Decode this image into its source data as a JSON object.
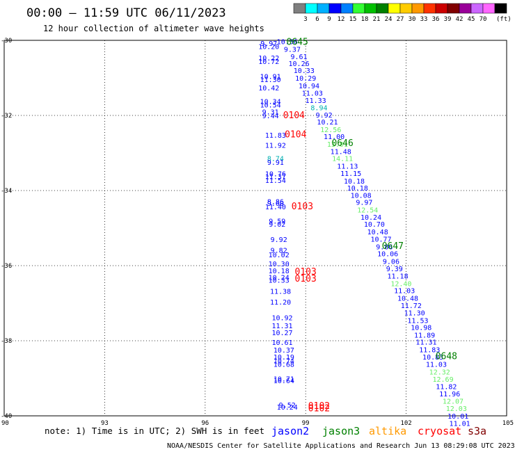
{
  "header": {
    "title": "00:00 – 11:59 UTC 06/11/2023",
    "subtitle": "12 hour collection of altimeter wave heights"
  },
  "colorbar": {
    "colors": [
      "#7f7f7f",
      "#00ffff",
      "#00b0ff",
      "#0000ff",
      "#0080ff",
      "#33ff33",
      "#00c000",
      "#008000",
      "#ffff00",
      "#ffcc00",
      "#ff9900",
      "#ff3300",
      "#cc0000",
      "#800000",
      "#990099",
      "#cc66ff",
      "#ff66ff",
      "#000000"
    ],
    "labels": [
      "3",
      "6",
      "9",
      "12",
      "15",
      "18",
      "21",
      "24",
      "27",
      "30",
      "33",
      "36",
      "39",
      "42",
      "45",
      "70"
    ],
    "unit": "(ft)"
  },
  "note": "note: 1) Time is in UTC; 2) SWH is in feet",
  "legend": [
    {
      "name": "jason2",
      "color": "#0000ff"
    },
    {
      "name": "jason3",
      "color": "#008000"
    },
    {
      "name": "altika",
      "color": "#ff9900"
    },
    {
      "name": "cryosat",
      "color": "#ff0000"
    },
    {
      "name": "s3a",
      "color": "#800000"
    }
  ],
  "footer": "NOAA/NESDIS Center for Satellite Applications and Research   Jun 13 08:29:08 UTC 2023",
  "chart_data": {
    "type": "scatter",
    "x_ticks": [
      "90",
      "93",
      "96",
      "99",
      "102",
      "105"
    ],
    "y_ticks": [
      "-30",
      "-32",
      "-34",
      "-36",
      "-38",
      "-40"
    ],
    "xlim": [
      90,
      105
    ],
    "ylim": [
      -40,
      -30
    ],
    "grid": true,
    "value_colors": {
      "blue": "#0000ff",
      "cyan": "#00b0b0",
      "lgreen": "#66ee66",
      "green": "#00a000"
    },
    "values": [
      {
        "x": 97.9,
        "y": -30.07,
        "v": "9.97",
        "c": "blue"
      },
      {
        "x": 97.9,
        "y": -30.16,
        "v": "10.20",
        "c": "blue"
      },
      {
        "x": 97.9,
        "y": -30.46,
        "v": "10.22",
        "c": "blue"
      },
      {
        "x": 97.9,
        "y": -30.56,
        "v": "10.72",
        "c": "blue"
      },
      {
        "x": 97.95,
        "y": -30.95,
        "v": "10.91",
        "c": "blue"
      },
      {
        "x": 97.95,
        "y": -31.04,
        "v": "11.30",
        "c": "blue"
      },
      {
        "x": 97.9,
        "y": -31.26,
        "v": "10.42",
        "c": "blue"
      },
      {
        "x": 97.95,
        "y": -31.62,
        "v": "10.34",
        "c": "blue"
      },
      {
        "x": 97.95,
        "y": -31.71,
        "v": "10.54",
        "c": "blue"
      },
      {
        "x": 97.95,
        "y": -31.9,
        "v": "9.31",
        "c": "blue"
      },
      {
        "x": 97.95,
        "y": -32.0,
        "v": "9.44",
        "c": "blue"
      },
      {
        "x": 98.1,
        "y": -32.52,
        "v": "11.83",
        "c": "blue"
      },
      {
        "x": 98.1,
        "y": -32.79,
        "v": "11.92",
        "c": "blue"
      },
      {
        "x": 98.1,
        "y": -33.14,
        "v": "8.74",
        "c": "cyan"
      },
      {
        "x": 98.1,
        "y": -33.24,
        "v": "9.91",
        "c": "blue"
      },
      {
        "x": 98.1,
        "y": -33.55,
        "v": "10.76",
        "c": "blue"
      },
      {
        "x": 98.1,
        "y": -33.62,
        "v": "11.37",
        "c": "blue"
      },
      {
        "x": 98.1,
        "y": -33.72,
        "v": "11.54",
        "c": "blue"
      },
      {
        "x": 98.1,
        "y": -34.29,
        "v": "8.86",
        "c": "blue"
      },
      {
        "x": 98.1,
        "y": -34.33,
        "v": "9.60",
        "c": "blue"
      },
      {
        "x": 98.1,
        "y": -34.43,
        "v": "11.40",
        "c": "blue"
      },
      {
        "x": 98.15,
        "y": -34.81,
        "v": "9.59",
        "c": "blue"
      },
      {
        "x": 98.15,
        "y": -34.89,
        "v": "9.02",
        "c": "blue"
      },
      {
        "x": 98.2,
        "y": -35.3,
        "v": "9.92",
        "c": "blue"
      },
      {
        "x": 98.2,
        "y": -35.58,
        "v": "9.82",
        "c": "blue"
      },
      {
        "x": 98.2,
        "y": -35.7,
        "v": "10.02",
        "c": "blue"
      },
      {
        "x": 98.2,
        "y": -35.94,
        "v": "10.30",
        "c": "blue"
      },
      {
        "x": 98.2,
        "y": -36.13,
        "v": "10.18",
        "c": "blue"
      },
      {
        "x": 98.2,
        "y": -36.31,
        "v": "10.24",
        "c": "blue"
      },
      {
        "x": 98.2,
        "y": -36.38,
        "v": "10.33",
        "c": "blue"
      },
      {
        "x": 98.25,
        "y": -36.68,
        "v": "11.38",
        "c": "blue"
      },
      {
        "x": 98.25,
        "y": -36.96,
        "v": "11.20",
        "c": "blue"
      },
      {
        "x": 98.3,
        "y": -37.38,
        "v": "10.92",
        "c": "blue"
      },
      {
        "x": 98.3,
        "y": -37.59,
        "v": "11.31",
        "c": "blue"
      },
      {
        "x": 98.3,
        "y": -37.78,
        "v": "10.27",
        "c": "blue"
      },
      {
        "x": 98.3,
        "y": -38.04,
        "v": "10.61",
        "c": "blue"
      },
      {
        "x": 98.35,
        "y": -38.24,
        "v": "10.37",
        "c": "blue"
      },
      {
        "x": 98.35,
        "y": -38.43,
        "v": "10.19",
        "c": "blue"
      },
      {
        "x": 98.35,
        "y": -38.53,
        "v": "10.74",
        "c": "blue"
      },
      {
        "x": 98.35,
        "y": -38.62,
        "v": "10.68",
        "c": "blue"
      },
      {
        "x": 98.35,
        "y": -39.01,
        "v": "10.71",
        "c": "blue"
      },
      {
        "x": 98.35,
        "y": -39.06,
        "v": "10.64",
        "c": "blue"
      },
      {
        "x": 98.45,
        "y": -39.7,
        "v": "9.52",
        "c": "blue"
      },
      {
        "x": 98.45,
        "y": -39.76,
        "v": "10.24",
        "c": "blue"
      },
      {
        "x": 98.45,
        "y": -30.03,
        "v": "10.56",
        "c": "blue"
      },
      {
        "x": 98.6,
        "y": -30.23,
        "v": "9.37",
        "c": "blue"
      },
      {
        "x": 98.8,
        "y": -30.43,
        "v": "9.61",
        "c": "blue"
      },
      {
        "x": 98.8,
        "y": -30.61,
        "v": "10.26",
        "c": "blue"
      },
      {
        "x": 98.95,
        "y": -30.8,
        "v": "10.33",
        "c": "blue"
      },
      {
        "x": 99.0,
        "y": -31.0,
        "v": "10.29",
        "c": "blue"
      },
      {
        "x": 99.1,
        "y": -31.2,
        "v": "10.94",
        "c": "blue"
      },
      {
        "x": 99.2,
        "y": -31.4,
        "v": "11.03",
        "c": "blue"
      },
      {
        "x": 99.3,
        "y": -31.59,
        "v": "11.33",
        "c": "blue"
      },
      {
        "x": 99.4,
        "y": -31.79,
        "v": "8.94",
        "c": "cyan"
      },
      {
        "x": 99.55,
        "y": -31.98,
        "v": "9.92",
        "c": "blue"
      },
      {
        "x": 99.65,
        "y": -32.17,
        "v": "10.21",
        "c": "blue"
      },
      {
        "x": 99.75,
        "y": -32.37,
        "v": "12.56",
        "c": "lgreen"
      },
      {
        "x": 99.85,
        "y": -32.56,
        "v": "11.00",
        "c": "blue"
      },
      {
        "x": 99.95,
        "y": -32.76,
        "v": "13.01",
        "c": "lgreen"
      },
      {
        "x": 100.05,
        "y": -32.95,
        "v": "11.48",
        "c": "blue"
      },
      {
        "x": 100.1,
        "y": -33.14,
        "v": "14.11",
        "c": "lgreen"
      },
      {
        "x": 100.25,
        "y": -33.34,
        "v": "11.13",
        "c": "blue"
      },
      {
        "x": 100.35,
        "y": -33.54,
        "v": "11.15",
        "c": "blue"
      },
      {
        "x": 100.45,
        "y": -33.74,
        "v": "10.18",
        "c": "blue"
      },
      {
        "x": 100.55,
        "y": -33.93,
        "v": "10.18",
        "c": "blue"
      },
      {
        "x": 100.65,
        "y": -34.12,
        "v": "10.08",
        "c": "blue"
      },
      {
        "x": 100.75,
        "y": -34.31,
        "v": "9.97",
        "c": "blue"
      },
      {
        "x": 100.85,
        "y": -34.51,
        "v": "12.54",
        "c": "lgreen"
      },
      {
        "x": 100.95,
        "y": -34.7,
        "v": "10.24",
        "c": "blue"
      },
      {
        "x": 101.05,
        "y": -34.89,
        "v": "10.70",
        "c": "blue"
      },
      {
        "x": 101.15,
        "y": -35.09,
        "v": "10.48",
        "c": "blue"
      },
      {
        "x": 101.25,
        "y": -35.29,
        "v": "10.77",
        "c": "blue"
      },
      {
        "x": 101.35,
        "y": -35.49,
        "v": "9.86",
        "c": "blue"
      },
      {
        "x": 101.45,
        "y": -35.68,
        "v": "10.06",
        "c": "blue"
      },
      {
        "x": 101.55,
        "y": -35.88,
        "v": "9.06",
        "c": "blue"
      },
      {
        "x": 101.65,
        "y": -36.07,
        "v": "9.39",
        "c": "blue"
      },
      {
        "x": 101.75,
        "y": -36.27,
        "v": "11.18",
        "c": "blue"
      },
      {
        "x": 101.85,
        "y": -36.47,
        "v": "12.40",
        "c": "lgreen"
      },
      {
        "x": 101.95,
        "y": -36.66,
        "v": "11.03",
        "c": "blue"
      },
      {
        "x": 102.05,
        "y": -36.86,
        "v": "10.48",
        "c": "blue"
      },
      {
        "x": 102.15,
        "y": -37.06,
        "v": "11.72",
        "c": "blue"
      },
      {
        "x": 102.25,
        "y": -37.25,
        "v": "11.30",
        "c": "blue"
      },
      {
        "x": 102.35,
        "y": -37.45,
        "v": "11.53",
        "c": "blue"
      },
      {
        "x": 102.45,
        "y": -37.64,
        "v": "10.98",
        "c": "blue"
      },
      {
        "x": 102.55,
        "y": -37.84,
        "v": "11.89",
        "c": "blue"
      },
      {
        "x": 102.6,
        "y": -38.03,
        "v": "11.31",
        "c": "blue"
      },
      {
        "x": 102.7,
        "y": -38.23,
        "v": "11.83",
        "c": "blue"
      },
      {
        "x": 102.8,
        "y": -38.43,
        "v": "10.83",
        "c": "blue"
      },
      {
        "x": 102.9,
        "y": -38.62,
        "v": "11.03",
        "c": "blue"
      },
      {
        "x": 103.0,
        "y": -38.82,
        "v": "12.32",
        "c": "lgreen"
      },
      {
        "x": 103.1,
        "y": -39.02,
        "v": "12.69",
        "c": "lgreen"
      },
      {
        "x": 103.2,
        "y": -39.21,
        "v": "11.82",
        "c": "blue"
      },
      {
        "x": 103.3,
        "y": -39.41,
        "v": "11.96",
        "c": "blue"
      },
      {
        "x": 103.4,
        "y": -39.6,
        "v": "12.07",
        "c": "lgreen"
      },
      {
        "x": 103.5,
        "y": -39.8,
        "v": "12.03",
        "c": "lgreen"
      },
      {
        "x": 103.55,
        "y": -40.0,
        "v": "10.01",
        "c": "blue"
      },
      {
        "x": 103.6,
        "y": -40.19,
        "v": "11.01",
        "c": "blue"
      }
    ],
    "passes": [
      {
        "x": 98.75,
        "y": -30.03,
        "label": "0645",
        "c": "#008000"
      },
      {
        "x": 98.65,
        "y": -31.98,
        "label": "0104",
        "c": "#ff0000"
      },
      {
        "x": 98.7,
        "y": -32.49,
        "label": "0104",
        "c": "#ff0000"
      },
      {
        "x": 100.1,
        "y": -32.72,
        "label": "0646",
        "c": "#008000"
      },
      {
        "x": 98.9,
        "y": -34.41,
        "label": "0103",
        "c": "#ff0000"
      },
      {
        "x": 101.6,
        "y": -35.46,
        "label": "0647",
        "c": "#008000"
      },
      {
        "x": 99.0,
        "y": -36.15,
        "label": "0103",
        "c": "#ff0000"
      },
      {
        "x": 99.0,
        "y": -36.33,
        "label": "0103",
        "c": "#ff0000"
      },
      {
        "x": 103.2,
        "y": -38.4,
        "label": "0648",
        "c": "#008000"
      },
      {
        "x": 99.4,
        "y": -39.72,
        "label": "0102",
        "c": "#ff0000"
      },
      {
        "x": 99.4,
        "y": -39.79,
        "label": "0102",
        "c": "#ff0000"
      }
    ]
  }
}
